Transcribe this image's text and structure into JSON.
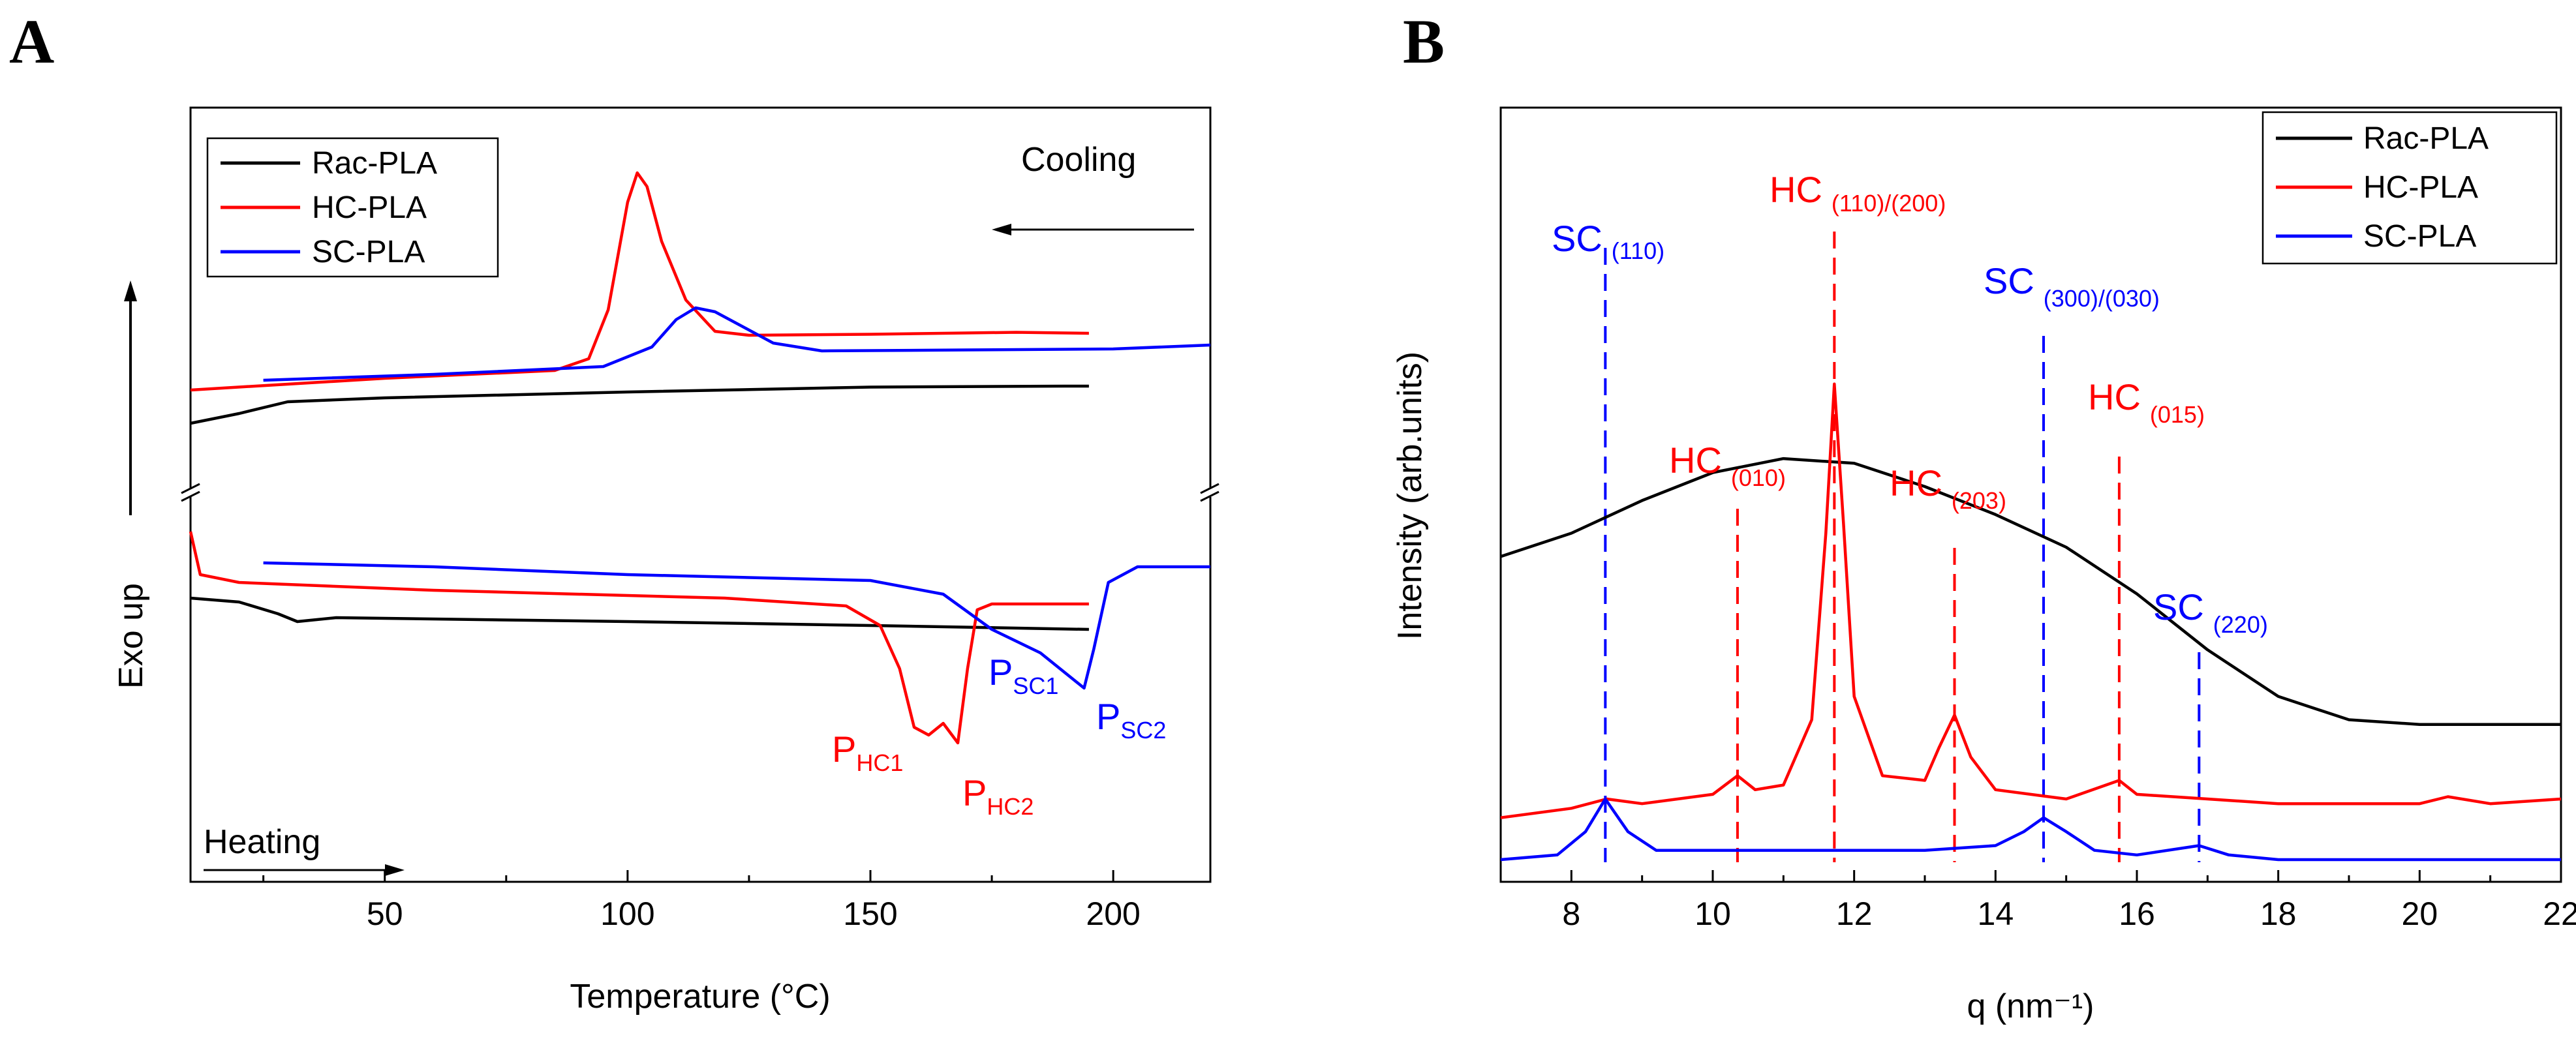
{
  "chart_data": [
    {
      "panel": "A",
      "type": "line",
      "xlabel": "Temperature (°C)",
      "ylabel": "Exo up",
      "xlim": [
        10,
        220
      ],
      "xticks": [
        50,
        100,
        150,
        200
      ],
      "y_units": "arbitrary (offset traces, broken axis)",
      "legend": [
        "Rac-PLA",
        "HC-PLA",
        "SC-PLA"
      ],
      "legend_position": "top-left",
      "text_annotations": {
        "cooling": "Cooling",
        "heating": "Heating"
      },
      "colors": {
        "Rac-PLA": "#000000",
        "HC-PLA": "#ff0000",
        "SC-PLA": "#0000ff"
      },
      "peak_labels": [
        {
          "main": "P",
          "sub": "HC1",
          "color": "#ff0000"
        },
        {
          "main": "P",
          "sub": "HC2",
          "color": "#ff0000"
        },
        {
          "main": "P",
          "sub": "SC1",
          "color": "#0000ff"
        },
        {
          "main": "P",
          "sub": "SC2",
          "color": "#0000ff"
        }
      ],
      "series": [
        {
          "name": "Rac-PLA",
          "segment": "cooling",
          "color": "#000000",
          "points": [
            [
              10,
              0.27
            ],
            [
              20,
              0.32
            ],
            [
              30,
              0.38
            ],
            [
              50,
              0.4
            ],
            [
              100,
              0.43
            ],
            [
              150,
              0.455
            ],
            [
              190,
              0.46
            ],
            [
              195,
              0.46
            ]
          ]
        },
        {
          "name": "HC-PLA",
          "segment": "cooling",
          "color": "#ff0000",
          "points": [
            [
              10,
              0.44
            ],
            [
              50,
              0.5
            ],
            [
              85,
              0.54
            ],
            [
              92,
              0.6
            ],
            [
              96,
              0.85
            ],
            [
              100,
              1.4
            ],
            [
              102,
              1.55
            ],
            [
              104,
              1.48
            ],
            [
              107,
              1.2
            ],
            [
              112,
              0.9
            ],
            [
              118,
              0.74
            ],
            [
              125,
              0.72
            ],
            [
              150,
              0.725
            ],
            [
              180,
              0.735
            ],
            [
              195,
              0.73
            ]
          ]
        },
        {
          "name": "SC-PLA",
          "segment": "cooling",
          "color": "#0000ff",
          "points": [
            [
              25,
              0.49
            ],
            [
              60,
              0.52
            ],
            [
              95,
              0.56
            ],
            [
              105,
              0.66
            ],
            [
              110,
              0.8
            ],
            [
              114,
              0.86
            ],
            [
              118,
              0.84
            ],
            [
              124,
              0.76
            ],
            [
              130,
              0.68
            ],
            [
              140,
              0.64
            ],
            [
              170,
              0.645
            ],
            [
              200,
              0.65
            ],
            [
              220,
              0.67
            ]
          ]
        },
        {
          "name": "Rac-PLA",
          "segment": "heating",
          "color": "#000000",
          "points": [
            [
              10,
              -0.14
            ],
            [
              20,
              -0.16
            ],
            [
              28,
              -0.22
            ],
            [
              32,
              -0.26
            ],
            [
              40,
              -0.24
            ],
            [
              100,
              -0.26
            ],
            [
              150,
              -0.28
            ],
            [
              195,
              -0.3
            ]
          ]
        },
        {
          "name": "HC-PLA",
          "segment": "heating",
          "color": "#ff0000",
          "points": [
            [
              10,
              0.2
            ],
            [
              12,
              -0.02
            ],
            [
              20,
              -0.06
            ],
            [
              60,
              -0.1
            ],
            [
              120,
              -0.14
            ],
            [
              145,
              -0.18
            ],
            [
              152,
              -0.28
            ],
            [
              156,
              -0.5
            ],
            [
              159,
              -0.8
            ],
            [
              162,
              -0.84
            ],
            [
              165,
              -0.78
            ],
            [
              168,
              -0.88
            ],
            [
              170,
              -0.5
            ],
            [
              172,
              -0.2
            ],
            [
              175,
              -0.17
            ],
            [
              195,
              -0.17
            ]
          ]
        },
        {
          "name": "SC-PLA",
          "segment": "heating",
          "color": "#0000ff",
          "points": [
            [
              25,
              0.04
            ],
            [
              60,
              0.02
            ],
            [
              100,
              -0.02
            ],
            [
              150,
              -0.05
            ],
            [
              165,
              -0.12
            ],
            [
              175,
              -0.3
            ],
            [
              185,
              -0.42
            ],
            [
              192,
              -0.56
            ],
            [
              194,
              -0.6
            ],
            [
              196,
              -0.4
            ],
            [
              199,
              -0.06
            ],
            [
              205,
              0.02
            ],
            [
              220,
              0.02
            ]
          ]
        }
      ]
    },
    {
      "panel": "B",
      "type": "line",
      "xlabel": "q (nm⁻¹)",
      "ylabel": "Intensity (arb.units)",
      "xlim": [
        7,
        22
      ],
      "xticks": [
        8,
        10,
        12,
        14,
        16,
        18,
        20,
        22
      ],
      "y_units": "arbitrary (offset traces)",
      "legend": [
        "Rac-PLA",
        "HC-PLA",
        "SC-PLA"
      ],
      "legend_position": "top-right",
      "colors": {
        "Rac-PLA": "#000000",
        "HC-PLA": "#ff0000",
        "SC-PLA": "#0000ff"
      },
      "reflections": [
        {
          "phase": "SC",
          "index": "(110)",
          "q": 8.48,
          "color": "#0000ff"
        },
        {
          "phase": "HC",
          "index": "(010)",
          "q": 10.35,
          "color": "#ff0000"
        },
        {
          "phase": "HC",
          "index": "(110)/(200)",
          "q": 11.72,
          "color": "#ff0000"
        },
        {
          "phase": "HC",
          "index": "(203)",
          "q": 13.42,
          "color": "#ff0000"
        },
        {
          "phase": "SC",
          "index": "(300)/(030)",
          "q": 14.68,
          "color": "#0000ff"
        },
        {
          "phase": "HC",
          "index": "(015)",
          "q": 15.75,
          "color": "#ff0000"
        },
        {
          "phase": "SC",
          "index": "(220)",
          "q": 16.88,
          "color": "#0000ff"
        }
      ],
      "series": [
        {
          "name": "Rac-PLA",
          "color": "#000000",
          "points": [
            [
              7,
              0.65
            ],
            [
              8,
              0.7
            ],
            [
              9,
              0.77
            ],
            [
              10,
              0.83
            ],
            [
              11,
              0.86
            ],
            [
              12,
              0.85
            ],
            [
              13,
              0.8
            ],
            [
              14,
              0.74
            ],
            [
              15,
              0.67
            ],
            [
              16,
              0.57
            ],
            [
              17,
              0.45
            ],
            [
              18,
              0.35
            ],
            [
              19,
              0.3
            ],
            [
              20,
              0.29
            ],
            [
              22,
              0.29
            ]
          ]
        },
        {
          "name": "HC-PLA",
          "color": "#ff0000",
          "points": [
            [
              7,
              0.09
            ],
            [
              8,
              0.11
            ],
            [
              8.5,
              0.13
            ],
            [
              9,
              0.12
            ],
            [
              10,
              0.14
            ],
            [
              10.35,
              0.18
            ],
            [
              10.6,
              0.15
            ],
            [
              11,
              0.16
            ],
            [
              11.4,
              0.3
            ],
            [
              11.6,
              0.7
            ],
            [
              11.72,
              1.02
            ],
            [
              11.85,
              0.72
            ],
            [
              12,
              0.35
            ],
            [
              12.4,
              0.18
            ],
            [
              13,
              0.17
            ],
            [
              13.2,
              0.24
            ],
            [
              13.42,
              0.31
            ],
            [
              13.65,
              0.22
            ],
            [
              14,
              0.15
            ],
            [
              15,
              0.13
            ],
            [
              15.75,
              0.17
            ],
            [
              16,
              0.14
            ],
            [
              17,
              0.13
            ],
            [
              18,
              0.12
            ],
            [
              19,
              0.12
            ],
            [
              20,
              0.12
            ],
            [
              20.4,
              0.135
            ],
            [
              21,
              0.12
            ],
            [
              22,
              0.13
            ]
          ]
        },
        {
          "name": "SC-PLA",
          "color": "#0000ff",
          "points": [
            [
              7,
              0.0
            ],
            [
              7.8,
              0.01
            ],
            [
              8.2,
              0.06
            ],
            [
              8.48,
              0.13
            ],
            [
              8.8,
              0.06
            ],
            [
              9.2,
              0.02
            ],
            [
              10,
              0.02
            ],
            [
              12,
              0.02
            ],
            [
              13,
              0.02
            ],
            [
              14,
              0.03
            ],
            [
              14.4,
              0.06
            ],
            [
              14.68,
              0.09
            ],
            [
              15,
              0.06
            ],
            [
              15.4,
              0.02
            ],
            [
              16,
              0.01
            ],
            [
              16.88,
              0.03
            ],
            [
              17.3,
              0.01
            ],
            [
              18,
              0.0
            ],
            [
              20,
              0.0
            ],
            [
              22,
              0.0
            ]
          ]
        }
      ]
    }
  ]
}
